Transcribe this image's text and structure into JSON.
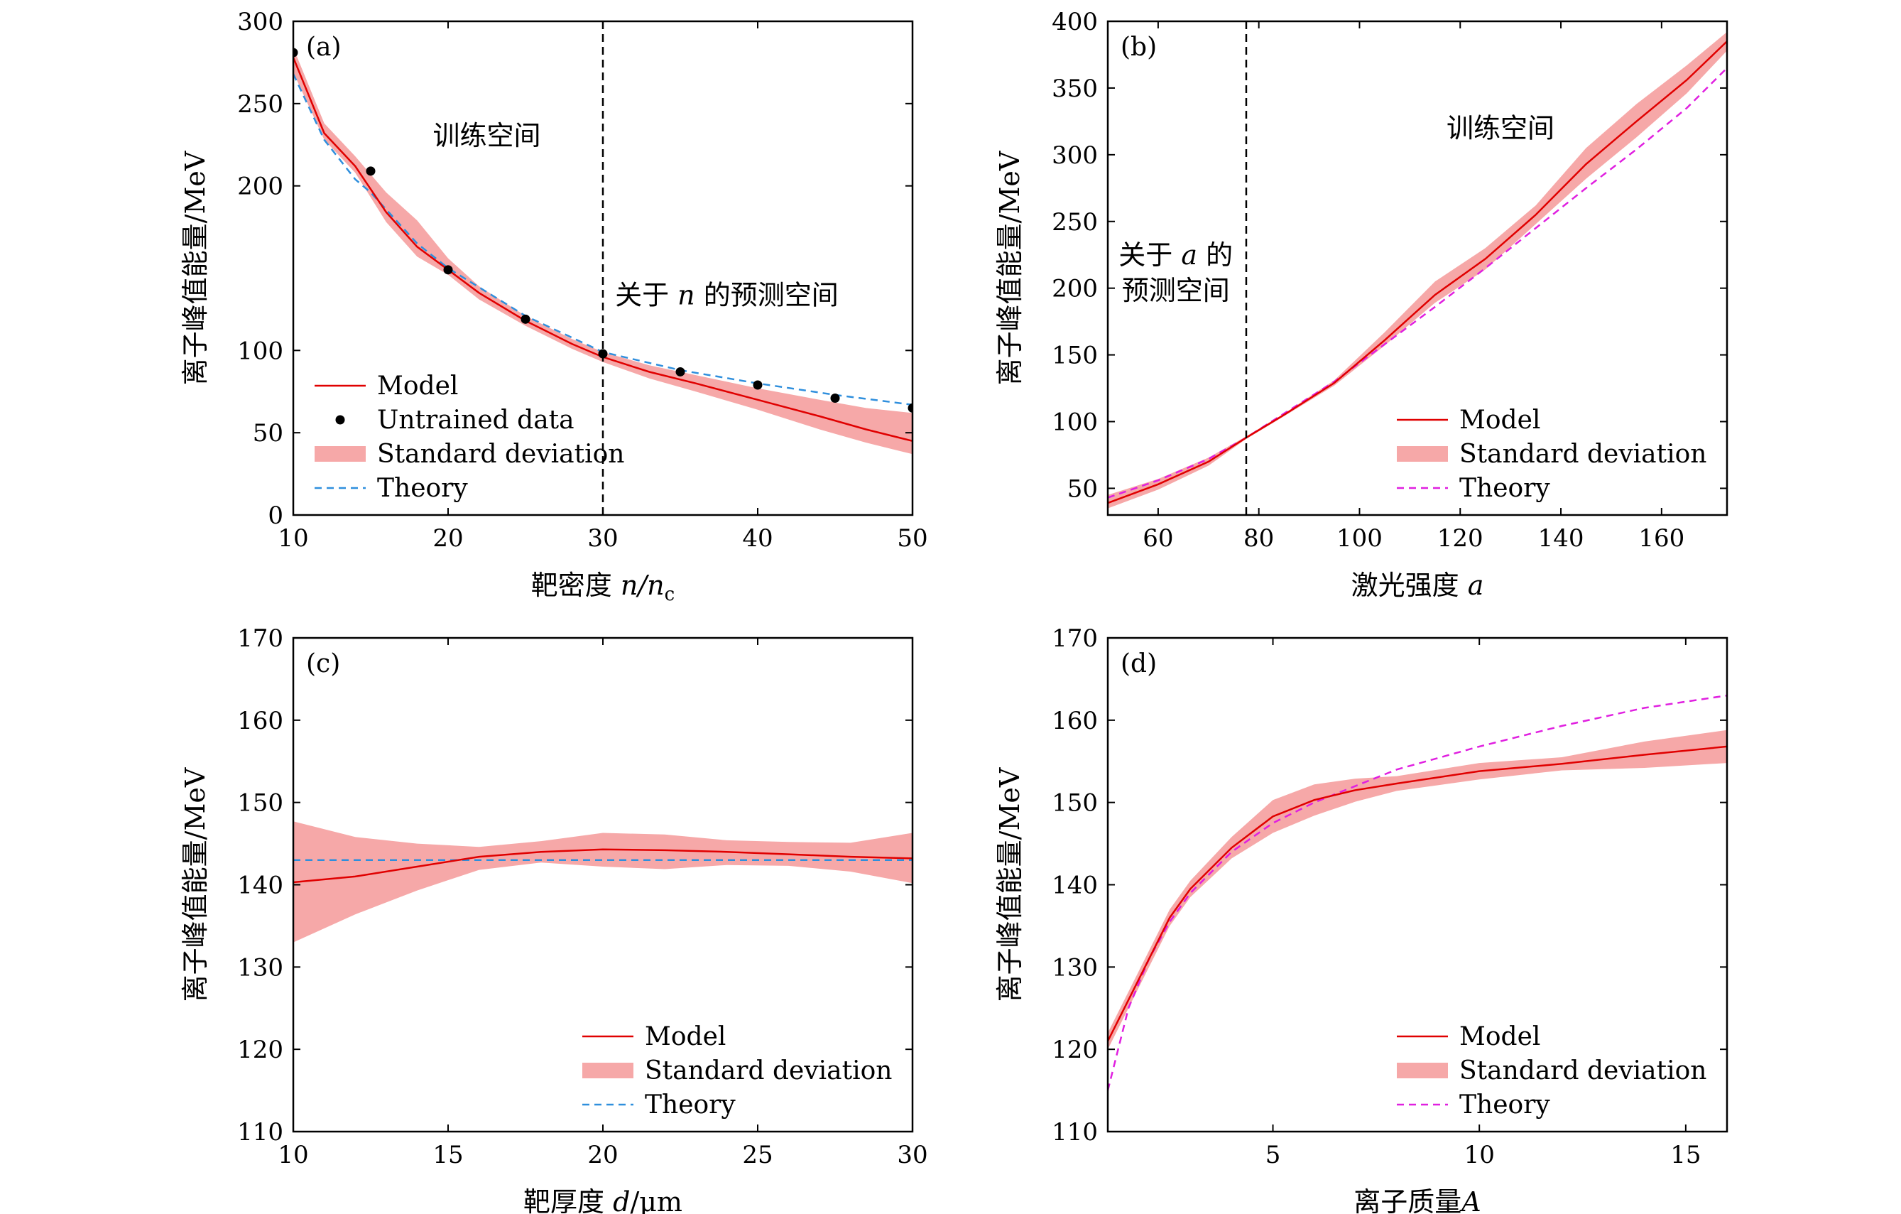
{
  "chart_data": [
    {
      "id": "a",
      "type": "line",
      "panel_label": "(a)",
      "xlabel": "靶密度 n/n_c",
      "xlabel_parts": {
        "prefix": "靶密度 ",
        "var": "n/n",
        "sub": "c"
      },
      "ylabel": "离子峰值能量/MeV",
      "xlim": [
        10,
        50
      ],
      "ylim": [
        0,
        300
      ],
      "x_ticks": [
        10,
        20,
        30,
        40,
        50
      ],
      "y_ticks": [
        0,
        50,
        100,
        200,
        250,
        300
      ],
      "y_tick_labels": [
        "0",
        "50",
        "100",
        "200",
        "250",
        "300"
      ],
      "vline_x": 30,
      "regions": [
        {
          "lines": [
            {
              "pre": "训练空间"
            }
          ],
          "x": 22.5,
          "y": 225
        },
        {
          "lines": [
            {
              "pre": "关于 ",
              "var": "n",
              "post": " 的预测空间"
            }
          ],
          "x": 38,
          "y": 128
        }
      ],
      "legend": [
        "Model",
        "Untrained data",
        "Standard deviation",
        "Theory"
      ],
      "legend_position": "bottom-left",
      "theory_color": "#2f8fdd",
      "series": [
        {
          "name": "Model",
          "x": [
            10,
            12,
            14,
            16,
            18,
            20,
            22,
            25,
            28,
            30,
            33,
            36,
            40,
            44,
            47,
            50
          ],
          "values": [
            278,
            232,
            212,
            184,
            163,
            149,
            135,
            118,
            104,
            96,
            87,
            80,
            70,
            60,
            52,
            45
          ]
        },
        {
          "name": "Theory",
          "x": [
            10,
            12,
            14,
            15,
            18,
            20,
            25,
            30,
            35,
            40,
            45,
            50
          ],
          "values": [
            268,
            228,
            204,
            196,
            165,
            150,
            121,
            99,
            88,
            80,
            73,
            67
          ]
        },
        {
          "name": "Untrained data",
          "x": [
            10,
            15,
            20,
            25,
            30,
            35,
            40,
            45,
            50
          ],
          "values": [
            281,
            209,
            149,
            119,
            98,
            87,
            79,
            71,
            65
          ]
        },
        {
          "name": "Standard deviation",
          "x": [
            10,
            12,
            14,
            16,
            18,
            20,
            22,
            25,
            28,
            30,
            33,
            36,
            40,
            44,
            47,
            50
          ],
          "upper": [
            284,
            238,
            218,
            196,
            179,
            156,
            139,
            121,
            107,
            99,
            91,
            85,
            77,
            70,
            65,
            62
          ],
          "lower": [
            269,
            228,
            208,
            178,
            157,
            146,
            131,
            115,
            101,
            93,
            83,
            75,
            64,
            52,
            44,
            37
          ]
        }
      ]
    },
    {
      "id": "b",
      "type": "line",
      "panel_label": "(b)",
      "xlabel": "激光强度 a",
      "xlabel_parts": {
        "prefix": "激光强度 ",
        "var": "a",
        "sub": ""
      },
      "ylabel": "离子峰值能量/MeV",
      "xlim": [
        50,
        173
      ],
      "ylim": [
        30,
        400
      ],
      "x_ticks": [
        60,
        80,
        100,
        120,
        140,
        160
      ],
      "y_ticks": [
        50,
        100,
        150,
        200,
        250,
        300,
        350,
        400
      ],
      "y_tick_labels": [
        "50",
        "100",
        "150",
        "200",
        "250",
        "300",
        "350",
        "400"
      ],
      "vline_x": 77.5,
      "regions": [
        {
          "lines": [
            {
              "pre": "训练空间"
            }
          ],
          "x": 128,
          "y": 313
        },
        {
          "lines": [
            {
              "pre": "关于 ",
              "var": "a",
              "post": " 的"
            },
            {
              "pre": "预测空间"
            }
          ],
          "x": 63.5,
          "y": 218
        }
      ],
      "legend": [
        "Model",
        "Standard deviation",
        "Theory"
      ],
      "legend_position": "bottom-right",
      "theory_color": "#e020e0",
      "series": [
        {
          "name": "Model",
          "x": [
            50,
            60,
            70,
            77.5,
            85,
            95,
            105,
            115,
            125,
            135,
            145,
            155,
            165,
            173
          ],
          "values": [
            39,
            53,
            70,
            88,
            105,
            129,
            161,
            195,
            222,
            255,
            293,
            325,
            356,
            385
          ]
        },
        {
          "name": "Theory",
          "x": [
            50,
            60,
            70,
            77.5,
            85,
            95,
            105,
            115,
            125,
            135,
            145,
            155,
            165,
            173
          ],
          "values": [
            43,
            56,
            72,
            88,
            106,
            130,
            158,
            186,
            215,
            245,
            275,
            304,
            335,
            365
          ]
        },
        {
          "name": "Standard deviation",
          "x": [
            50,
            60,
            70,
            77.5,
            85,
            95,
            105,
            115,
            125,
            135,
            145,
            155,
            165,
            173
          ],
          "upper": [
            45,
            57,
            73,
            89,
            106,
            131,
            167,
            205,
            230,
            262,
            305,
            338,
            367,
            392
          ],
          "lower": [
            35,
            49,
            67,
            87,
            104,
            127,
            157,
            189,
            214,
            248,
            282,
            313,
            346,
            378
          ]
        }
      ]
    },
    {
      "id": "c",
      "type": "line",
      "panel_label": "(c)",
      "xlabel": "靶厚度 d/μm",
      "xlabel_parts": {
        "prefix": "靶厚度 ",
        "var": "d",
        "post": "/μm"
      },
      "ylabel": "离子峰值能量/MeV",
      "xlim": [
        10,
        30
      ],
      "ylim": [
        110,
        170
      ],
      "x_ticks": [
        10,
        15,
        20,
        25,
        30
      ],
      "y_ticks": [
        110,
        120,
        130,
        140,
        150,
        160,
        170
      ],
      "y_tick_labels": [
        "110",
        "120",
        "130",
        "140",
        "150",
        "160",
        "170"
      ],
      "regions": [],
      "legend": [
        "Model",
        "Standard deviation",
        "Theory"
      ],
      "legend_position": "bottom-right",
      "theory_color": "#2f8fdd",
      "series": [
        {
          "name": "Model",
          "x": [
            10,
            12,
            14,
            16,
            18,
            20,
            22,
            24,
            26,
            28,
            30
          ],
          "values": [
            140.3,
            141.0,
            142.2,
            143.4,
            144.0,
            144.3,
            144.2,
            144.0,
            143.7,
            143.4,
            143.2
          ]
        },
        {
          "name": "Theory",
          "x": [
            10,
            30
          ],
          "values": [
            143,
            143
          ]
        },
        {
          "name": "Standard deviation",
          "x": [
            10,
            12,
            14,
            16,
            18,
            20,
            22,
            24,
            26,
            28,
            30
          ],
          "upper": [
            147.7,
            145.8,
            145.0,
            144.6,
            145.3,
            146.3,
            146.1,
            145.4,
            145.2,
            145.1,
            146.3
          ],
          "lower": [
            133.0,
            136.4,
            139.3,
            141.8,
            142.7,
            142.2,
            141.9,
            142.4,
            142.3,
            141.6,
            140.2
          ]
        }
      ]
    },
    {
      "id": "d",
      "type": "line",
      "panel_label": "(d)",
      "xlabel": "离子质量A",
      "xlabel_parts": {
        "prefix": "离子质量",
        "var": "A",
        "sub": ""
      },
      "ylabel": "离子峰值能量/MeV",
      "xlim": [
        1,
        16
      ],
      "ylim": [
        110,
        170
      ],
      "x_ticks": [
        5,
        10,
        15
      ],
      "y_ticks": [
        110,
        120,
        130,
        140,
        150,
        160,
        170
      ],
      "y_tick_labels": [
        "110",
        "120",
        "130",
        "140",
        "150",
        "160",
        "170"
      ],
      "regions": [],
      "legend": [
        "Model",
        "Standard deviation",
        "Theory"
      ],
      "legend_position": "bottom-right",
      "theory_color": "#e020e0",
      "series": [
        {
          "name": "Model",
          "x": [
            1,
            1.5,
            2,
            2.5,
            3,
            4,
            5,
            6,
            7,
            8,
            10,
            12,
            14,
            16
          ],
          "values": [
            121,
            126,
            131,
            136,
            139.5,
            144.5,
            148.3,
            150.3,
            151.5,
            152.3,
            153.8,
            154.7,
            155.8,
            156.8
          ]
        },
        {
          "name": "Theory",
          "x": [
            1,
            1.5,
            2,
            2.5,
            3,
            4,
            5,
            6,
            8,
            10,
            12,
            14,
            16
          ],
          "values": [
            115,
            125,
            131,
            135.5,
            139,
            144,
            147.5,
            150,
            154,
            156.8,
            159.3,
            161.5,
            163
          ]
        },
        {
          "name": "Standard deviation",
          "x": [
            1,
            1.5,
            2,
            2.5,
            3,
            4,
            5,
            6,
            7,
            8,
            10,
            12,
            14,
            16
          ],
          "upper": [
            122,
            127,
            132,
            137,
            140.5,
            145.8,
            150.3,
            152.2,
            152.9,
            153.2,
            154.8,
            155.5,
            157.4,
            158.8
          ],
          "lower": [
            120,
            125,
            130,
            135,
            138.5,
            143.2,
            146.3,
            148.4,
            150.1,
            151.4,
            152.8,
            153.9,
            154.2,
            154.8
          ]
        }
      ]
    }
  ]
}
